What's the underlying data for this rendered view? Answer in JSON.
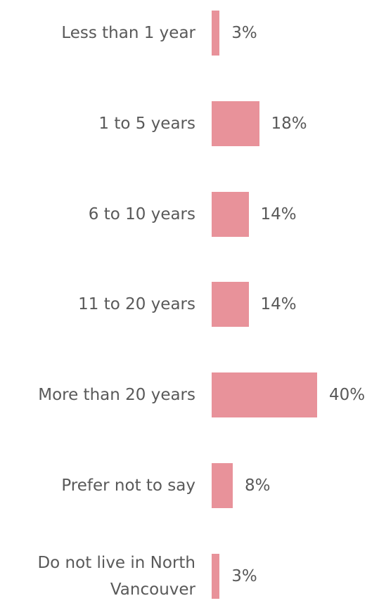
{
  "chart_data": {
    "type": "bar",
    "orientation": "horizontal",
    "categories": [
      "Less than 1 year",
      "1 to 5 years",
      "6 to 10 years",
      "11 to 20 years",
      "More than 20 years",
      "Prefer not to say",
      "Do not live in North Vancouver"
    ],
    "values": [
      3,
      18,
      14,
      14,
      40,
      8,
      3
    ],
    "value_labels": [
      "3%",
      "18%",
      "14%",
      "14%",
      "40%",
      "8%",
      "3%"
    ],
    "color": "#e8929a"
  }
}
